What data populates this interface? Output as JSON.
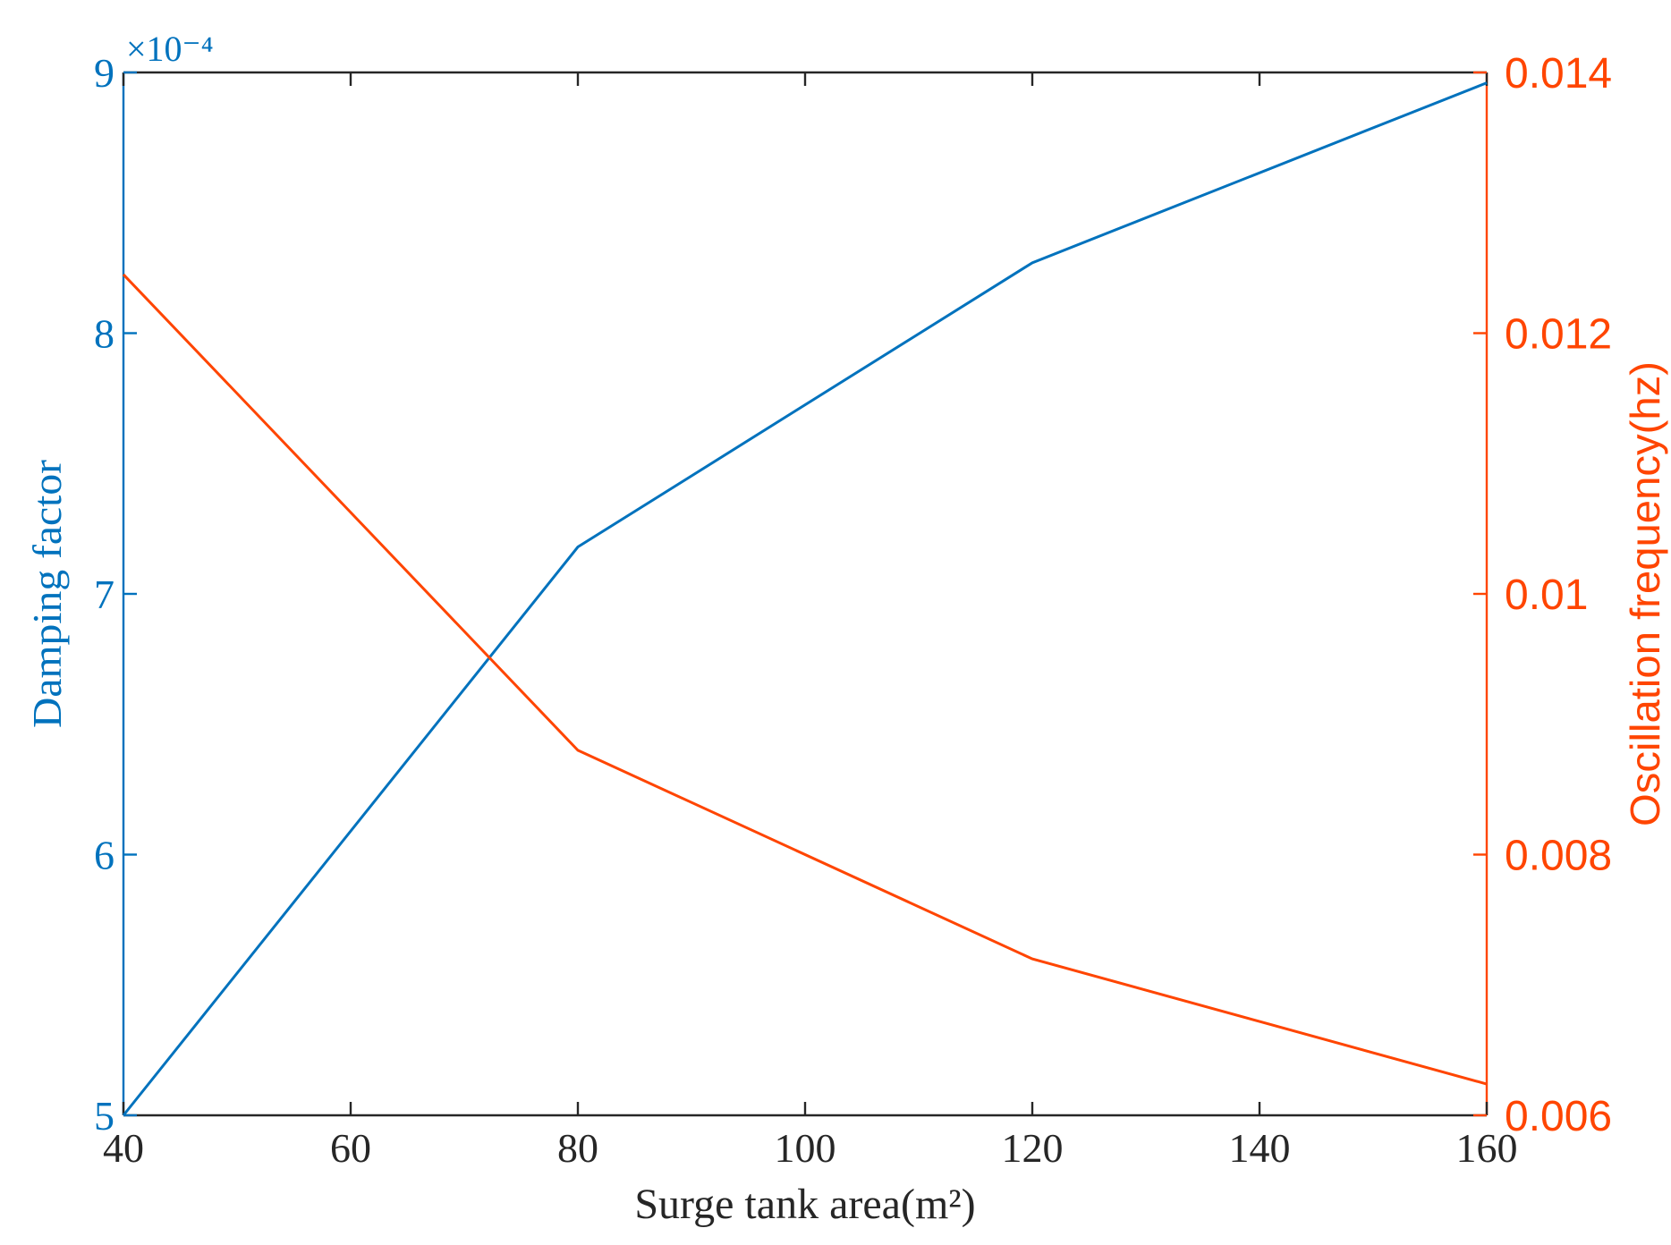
{
  "chart_data": {
    "type": "line",
    "xlabel": "Surge tank area(m²)",
    "x": [
      40,
      80,
      120,
      160
    ],
    "xlim": [
      40,
      160
    ],
    "xticks": [
      "40",
      "60",
      "80",
      "100",
      "120",
      "140",
      "160"
    ],
    "grid": false,
    "legend": "none",
    "left_axis": {
      "label": "Damping factor",
      "exponent_label": "×10⁻⁴",
      "ylim": [
        5,
        9
      ],
      "ticks": [
        "5",
        "6",
        "7",
        "8",
        "9"
      ],
      "color": "#0072BD"
    },
    "right_axis": {
      "label": "Oscillation frequency(hz)",
      "ylim": [
        0.006,
        0.014
      ],
      "ticks": [
        "0.006",
        "0.008",
        "0.01",
        "0.012",
        "0.014"
      ],
      "color": "#FF4500"
    },
    "series": [
      {
        "axis": "left",
        "values": [
          5.0,
          7.18,
          8.27,
          8.96
        ],
        "color": "#0072BD"
      },
      {
        "axis": "right",
        "values": [
          0.01245,
          0.0088,
          0.0072,
          0.00624
        ],
        "color": "#FF4500"
      }
    ]
  }
}
